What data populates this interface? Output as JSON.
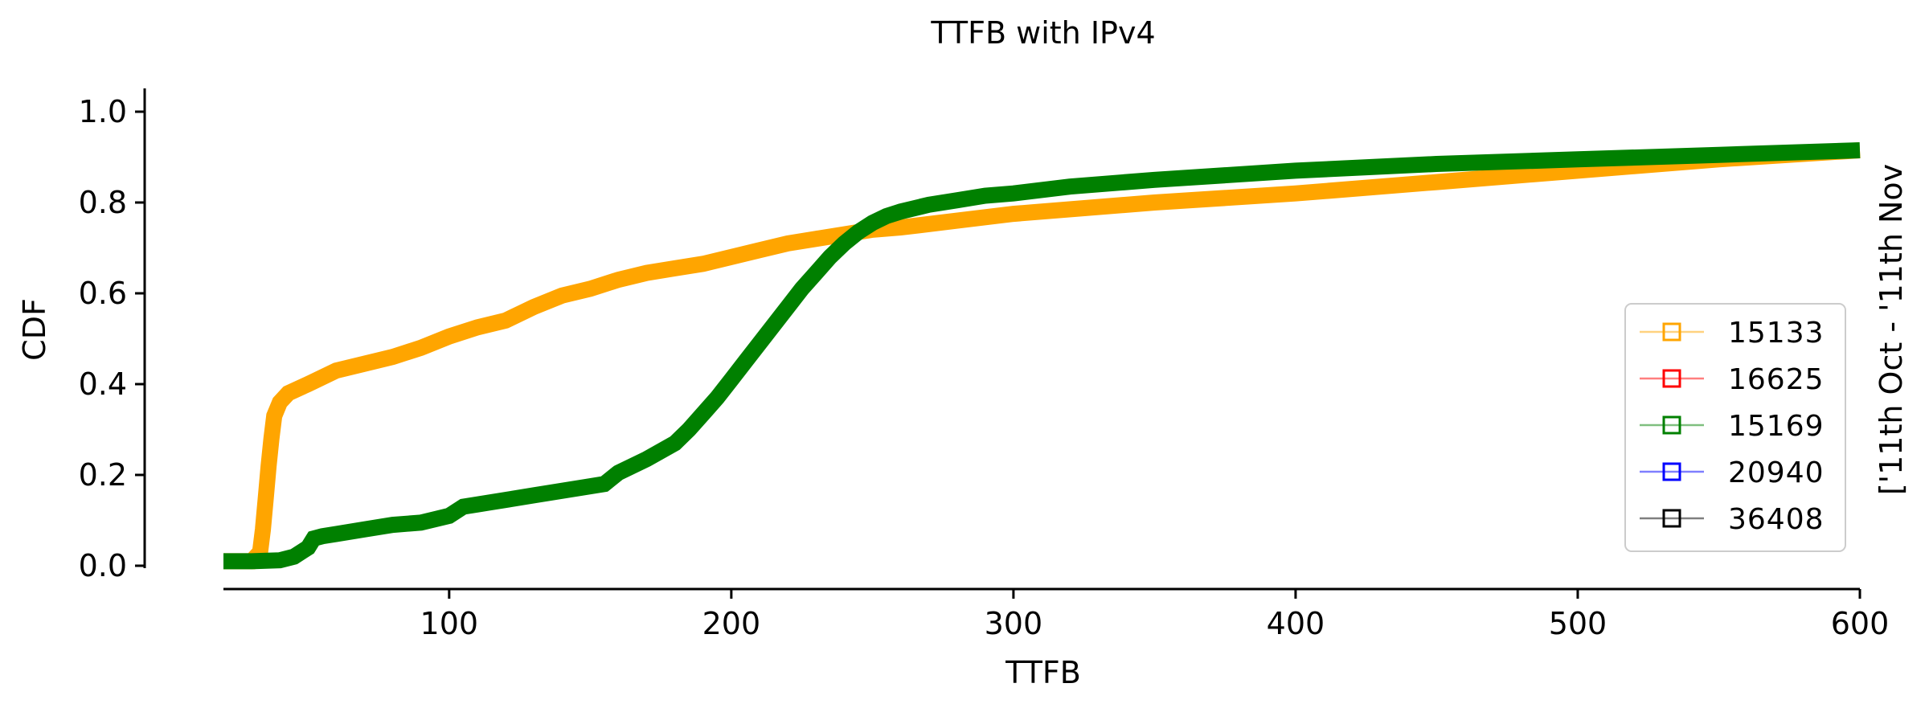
{
  "chart_data": {
    "type": "line",
    "title": "TTFB with IPv4",
    "xlabel": "TTFB",
    "ylabel": "CDF",
    "side_label": "['11th Oct - '11th Nov",
    "xlim": [
      20,
      600
    ],
    "ylim": [
      0,
      1.0
    ],
    "x_ticks": [
      100,
      200,
      300,
      400,
      500,
      600
    ],
    "x_tick_labels": [
      "100",
      "200",
      "300",
      "400",
      "500",
      "600"
    ],
    "y_ticks": [
      0.0,
      0.2,
      0.4,
      0.6,
      0.8,
      1.0
    ],
    "y_tick_labels": [
      "0.0",
      "0.2",
      "0.4",
      "0.6",
      "0.8",
      "1.0"
    ],
    "grid": false,
    "legend_position": "lower-right",
    "series": [
      {
        "name": "15133",
        "color": "#ffa500",
        "x": [
          20,
          30,
          33,
          34,
          35,
          36,
          37,
          38,
          40,
          43,
          50,
          60,
          70,
          80,
          90,
          100,
          110,
          120,
          130,
          140,
          150,
          160,
          170,
          180,
          190,
          200,
          210,
          220,
          230,
          240,
          250,
          260,
          280,
          300,
          350,
          400,
          450,
          500,
          550,
          600
        ],
        "y": [
          0.01,
          0.01,
          0.03,
          0.08,
          0.15,
          0.22,
          0.28,
          0.33,
          0.36,
          0.38,
          0.4,
          0.43,
          0.445,
          0.46,
          0.48,
          0.505,
          0.525,
          0.54,
          0.57,
          0.595,
          0.61,
          0.63,
          0.645,
          0.655,
          0.665,
          0.68,
          0.695,
          0.71,
          0.72,
          0.73,
          0.74,
          0.745,
          0.76,
          0.775,
          0.8,
          0.82,
          0.845,
          0.87,
          0.895,
          0.915
        ]
      },
      {
        "name": "16625",
        "color": "#ff0000",
        "x": [],
        "y": []
      },
      {
        "name": "15169",
        "color": "#008000",
        "x": [
          20,
          30,
          40,
          45,
          50,
          52,
          55,
          60,
          70,
          80,
          90,
          100,
          105,
          110,
          120,
          130,
          140,
          150,
          155,
          160,
          170,
          180,
          185,
          190,
          195,
          200,
          205,
          210,
          215,
          220,
          225,
          230,
          235,
          240,
          245,
          250,
          255,
          260,
          270,
          280,
          290,
          300,
          320,
          350,
          400,
          450,
          500,
          550,
          600
        ],
        "y": [
          0.01,
          0.01,
          0.012,
          0.02,
          0.04,
          0.06,
          0.065,
          0.07,
          0.08,
          0.09,
          0.095,
          0.11,
          0.13,
          0.135,
          0.145,
          0.155,
          0.165,
          0.175,
          0.18,
          0.205,
          0.235,
          0.27,
          0.3,
          0.335,
          0.37,
          0.41,
          0.45,
          0.49,
          0.53,
          0.57,
          0.61,
          0.645,
          0.68,
          0.71,
          0.735,
          0.755,
          0.77,
          0.78,
          0.795,
          0.805,
          0.815,
          0.82,
          0.835,
          0.85,
          0.87,
          0.885,
          0.895,
          0.905,
          0.915
        ]
      },
      {
        "name": "20940",
        "color": "#0000ff",
        "x": [],
        "y": []
      },
      {
        "name": "36408",
        "color": "#000000",
        "x": [],
        "y": []
      }
    ]
  }
}
